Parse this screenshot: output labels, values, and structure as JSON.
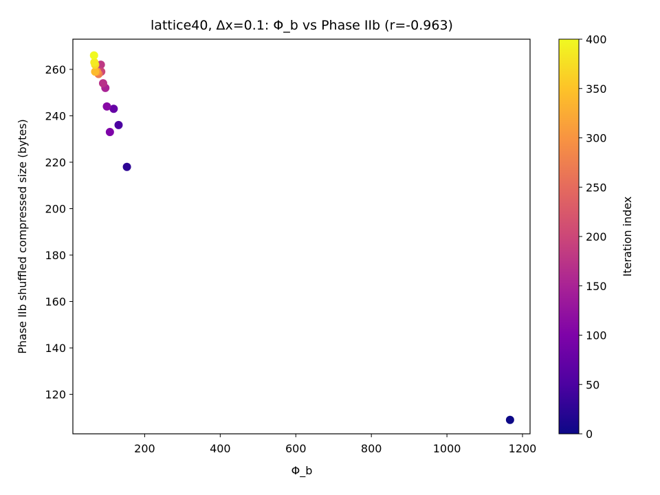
{
  "chart_data": {
    "type": "scatter",
    "title": "lattice40, Δx=0.1: Φ_b vs Phase IIb (r=-0.963)",
    "xlabel": "Φ_b",
    "ylabel": "Phase IIb shuffled compressed size (bytes)",
    "xlim": [
      10,
      1220
    ],
    "ylim": [
      103,
      273
    ],
    "xticks": [
      200,
      400,
      600,
      800,
      1000,
      1200
    ],
    "yticks": [
      120,
      140,
      160,
      180,
      200,
      220,
      240,
      260
    ],
    "grid": false,
    "colormap": "plasma",
    "colorbar": {
      "label": "Iteration index",
      "range": [
        0,
        400
      ],
      "ticks": [
        0,
        50,
        100,
        150,
        200,
        250,
        300,
        350,
        400
      ]
    },
    "points": [
      {
        "x": 1167,
        "y": 109,
        "c": 0
      },
      {
        "x": 153,
        "y": 218,
        "c": 25
      },
      {
        "x": 131,
        "y": 236,
        "c": 50
      },
      {
        "x": 118,
        "y": 243,
        "c": 75
      },
      {
        "x": 108,
        "y": 233,
        "c": 100
      },
      {
        "x": 100,
        "y": 244,
        "c": 110
      },
      {
        "x": 96,
        "y": 252,
        "c": 150
      },
      {
        "x": 90,
        "y": 254,
        "c": 170
      },
      {
        "x": 84,
        "y": 262,
        "c": 180
      },
      {
        "x": 85,
        "y": 259,
        "c": 200
      },
      {
        "x": 78,
        "y": 258,
        "c": 270
      },
      {
        "x": 74,
        "y": 259,
        "c": 300
      },
      {
        "x": 69,
        "y": 259,
        "c": 340
      },
      {
        "x": 69,
        "y": 262,
        "c": 370
      },
      {
        "x": 67,
        "y": 263,
        "c": 385
      },
      {
        "x": 66,
        "y": 266,
        "c": 400
      }
    ]
  }
}
